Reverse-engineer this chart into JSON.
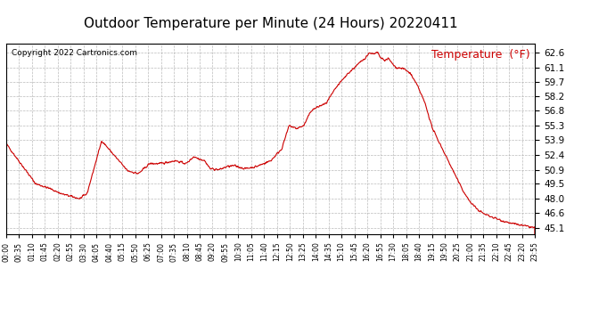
{
  "title": "Outdoor Temperature per Minute (24 Hours) 20220411",
  "copyright_text": "Copyright 2022 Cartronics.com",
  "legend_label": "Temperature  (°F)",
  "line_color": "#cc0000",
  "background_color": "#ffffff",
  "grid_color": "#aaaaaa",
  "yticks": [
    45.1,
    46.6,
    48.0,
    49.5,
    50.9,
    52.4,
    53.9,
    55.3,
    56.8,
    58.2,
    59.7,
    61.1,
    62.6
  ],
  "ymin": 44.5,
  "ymax": 63.5,
  "xtick_labels": [
    "00:00",
    "00:35",
    "01:10",
    "01:45",
    "02:20",
    "02:55",
    "03:30",
    "04:05",
    "04:40",
    "05:15",
    "05:50",
    "06:25",
    "07:00",
    "07:35",
    "08:10",
    "08:45",
    "09:20",
    "09:55",
    "10:30",
    "11:05",
    "11:40",
    "12:15",
    "12:50",
    "13:25",
    "14:00",
    "14:35",
    "15:10",
    "15:45",
    "16:20",
    "16:55",
    "17:30",
    "18:05",
    "18:40",
    "19:15",
    "19:50",
    "20:25",
    "21:00",
    "21:35",
    "22:10",
    "22:45",
    "23:20",
    "23:55"
  ],
  "title_fontsize": 11,
  "copyright_fontsize": 6.5,
  "legend_fontsize": 9,
  "ytick_fontsize": 7.5,
  "xtick_fontsize": 5.5,
  "keypoints": [
    [
      0,
      53.5
    ],
    [
      30,
      52.0
    ],
    [
      80,
      49.5
    ],
    [
      120,
      49.0
    ],
    [
      150,
      48.5
    ],
    [
      180,
      48.2
    ],
    [
      200,
      48.0
    ],
    [
      220,
      48.5
    ],
    [
      260,
      53.8
    ],
    [
      290,
      52.5
    ],
    [
      330,
      50.8
    ],
    [
      360,
      50.5
    ],
    [
      390,
      51.5
    ],
    [
      420,
      51.5
    ],
    [
      460,
      51.8
    ],
    [
      490,
      51.5
    ],
    [
      510,
      52.2
    ],
    [
      540,
      51.8
    ],
    [
      555,
      51.0
    ],
    [
      580,
      50.9
    ],
    [
      600,
      51.2
    ],
    [
      620,
      51.3
    ],
    [
      650,
      51.0
    ],
    [
      680,
      51.2
    ],
    [
      700,
      51.5
    ],
    [
      720,
      51.8
    ],
    [
      750,
      53.0
    ],
    [
      770,
      55.3
    ],
    [
      790,
      55.0
    ],
    [
      810,
      55.3
    ],
    [
      830,
      56.8
    ],
    [
      850,
      57.2
    ],
    [
      870,
      57.5
    ],
    [
      900,
      59.2
    ],
    [
      930,
      60.5
    ],
    [
      960,
      61.5
    ],
    [
      975,
      62.0
    ],
    [
      990,
      62.6
    ],
    [
      1000,
      62.4
    ],
    [
      1010,
      62.6
    ],
    [
      1020,
      62.0
    ],
    [
      1030,
      61.8
    ],
    [
      1040,
      62.0
    ],
    [
      1050,
      61.5
    ],
    [
      1060,
      61.1
    ],
    [
      1080,
      61.0
    ],
    [
      1100,
      60.5
    ],
    [
      1120,
      59.2
    ],
    [
      1140,
      57.5
    ],
    [
      1160,
      55.0
    ],
    [
      1180,
      53.5
    ],
    [
      1200,
      52.0
    ],
    [
      1220,
      50.5
    ],
    [
      1240,
      49.0
    ],
    [
      1260,
      47.8
    ],
    [
      1280,
      47.0
    ],
    [
      1300,
      46.5
    ],
    [
      1320,
      46.2
    ],
    [
      1350,
      45.8
    ],
    [
      1380,
      45.5
    ],
    [
      1410,
      45.3
    ],
    [
      1439,
      45.1
    ]
  ]
}
